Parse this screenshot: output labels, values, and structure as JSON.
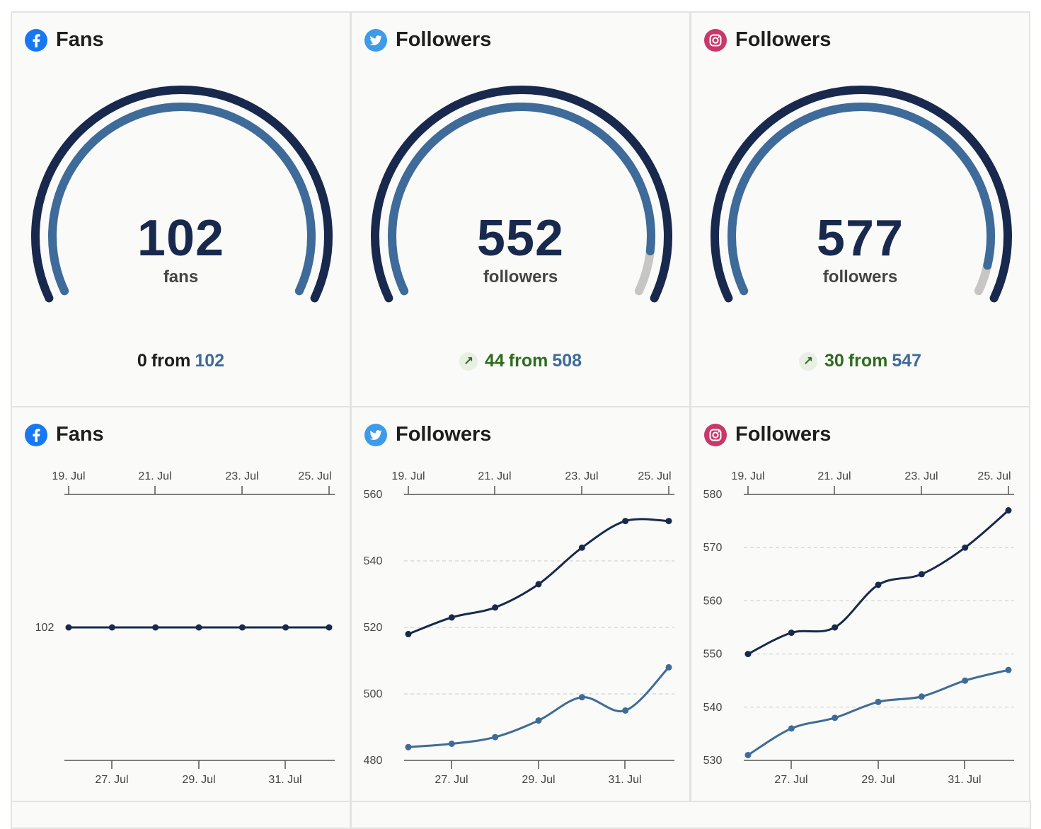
{
  "colors": {
    "primary": "#18294d",
    "secondary": "#3e6b99",
    "remaining": "#c8c6c4",
    "positive": "#2f6b1f"
  },
  "gauges": [
    {
      "network": "facebook",
      "icon": "facebook-icon",
      "title": "Fans",
      "value": "102",
      "unit": "fans",
      "change_value": "0",
      "change_from_word": "from",
      "previous": "102",
      "positive": false,
      "fill_fraction": 1.0
    },
    {
      "network": "twitter",
      "icon": "twitter-icon",
      "title": "Followers",
      "value": "552",
      "unit": "followers",
      "change_value": "44",
      "change_from_word": "from",
      "previous": "508",
      "positive": true,
      "fill_fraction": 0.92
    },
    {
      "network": "instagram",
      "icon": "instagram-icon",
      "title": "Followers",
      "value": "577",
      "unit": "followers",
      "change_value": "30",
      "change_from_word": "from",
      "previous": "547",
      "positive": true,
      "fill_fraction": 0.948
    }
  ],
  "chart_data": [
    {
      "type": "line",
      "network": "facebook",
      "icon": "facebook-icon",
      "title": "Fans",
      "x_top_ticks": [
        "19. Jul",
        "21. Jul",
        "23. Jul",
        "25. Jul"
      ],
      "x_bottom_ticks": [
        "27. Jul",
        "29. Jul",
        "31. Jul"
      ],
      "y_ticks": [
        "102"
      ],
      "ylim": [
        101,
        103
      ],
      "grid": false,
      "series": [
        {
          "role": "current",
          "values": [
            102,
            102,
            102,
            102,
            102,
            102,
            102
          ]
        }
      ]
    },
    {
      "type": "line",
      "network": "twitter",
      "icon": "twitter-icon",
      "title": "Followers",
      "x_top_ticks": [
        "19. Jul",
        "21. Jul",
        "23. Jul",
        "25. Jul"
      ],
      "x_bottom_ticks": [
        "27. Jul",
        "29. Jul",
        "31. Jul"
      ],
      "y_ticks": [
        "480",
        "500",
        "520",
        "540",
        "560"
      ],
      "ylim": [
        480,
        560
      ],
      "grid": true,
      "series": [
        {
          "role": "current",
          "values": [
            518,
            523,
            526,
            533,
            544,
            552,
            552
          ]
        },
        {
          "role": "previous",
          "values": [
            484,
            485,
            487,
            492,
            499,
            495,
            508
          ]
        }
      ]
    },
    {
      "type": "line",
      "network": "instagram",
      "icon": "instagram-icon",
      "title": "Followers",
      "x_top_ticks": [
        "19. Jul",
        "21. Jul",
        "23. Jul",
        "25. Jul"
      ],
      "x_bottom_ticks": [
        "27. Jul",
        "29. Jul",
        "31. Jul"
      ],
      "y_ticks": [
        "530",
        "540",
        "550",
        "560",
        "570",
        "580"
      ],
      "ylim": [
        530,
        580
      ],
      "grid": true,
      "series": [
        {
          "role": "current",
          "values": [
            550,
            554,
            555,
            563,
            565,
            570,
            577
          ]
        },
        {
          "role": "previous",
          "values": [
            531,
            536,
            538,
            541,
            542,
            545,
            547
          ]
        }
      ]
    }
  ]
}
